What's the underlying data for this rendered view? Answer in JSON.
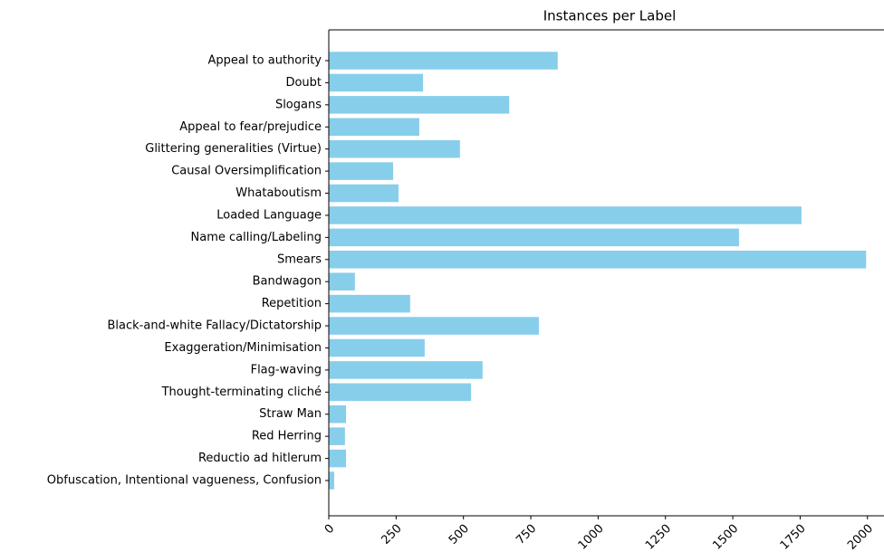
{
  "chart_data": {
    "type": "barh",
    "title": "Instances per Label",
    "categories": [
      "Appeal to authority",
      "Doubt",
      "Slogans",
      "Appeal to fear/prejudice",
      "Glittering generalities (Virtue)",
      "Causal Oversimplification",
      "Whataboutism",
      "Loaded Language",
      "Name calling/Labeling",
      "Smears",
      "Bandwagon",
      "Repetition",
      "Black-and-white Fallacy/Dictatorship",
      "Exaggeration/Minimisation",
      "Flag-waving",
      "Thought-terminating cliché",
      "Straw Man ",
      "Red Herring ",
      "Reductio ad hitlerum",
      "Obfuscation, Intentional vagueness, Confusion"
    ],
    "values": [
      850,
      350,
      670,
      336,
      487,
      239,
      259,
      1755,
      1523,
      1995,
      97,
      302,
      780,
      356,
      571,
      528,
      64,
      60,
      64,
      20
    ],
    "color": "#87ceeb",
    "xlim": [
      0,
      2095
    ],
    "xticks": [
      0,
      250,
      500,
      750,
      1000,
      1250,
      1500,
      1750,
      2000
    ],
    "grid": false
  }
}
